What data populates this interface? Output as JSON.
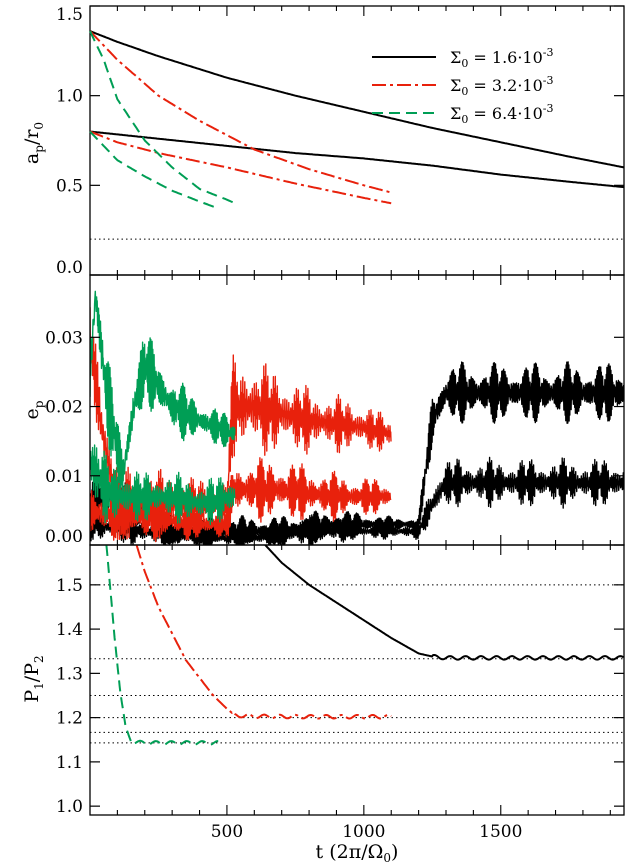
{
  "chart_data": [
    {
      "type": "line",
      "ylabel": "a_p/r_0",
      "xlim": [
        0,
        1950
      ],
      "ylim": [
        0.0,
        1.5
      ],
      "yticks": [
        "0.0",
        "0.5",
        "1.0",
        "1.5"
      ],
      "legend_position": "top-right",
      "series": [
        {
          "name": "Σ0 = 1.6·10-3",
          "color": "#000000",
          "style": "solid",
          "x": [
            0,
            100,
            250,
            500,
            750,
            1000,
            1250,
            1500,
            1750,
            1950
          ],
          "y": [
            1.36,
            1.3,
            1.22,
            1.1,
            1.0,
            0.91,
            0.82,
            0.74,
            0.66,
            0.6
          ]
        },
        {
          "name": "",
          "color": "#000000",
          "style": "solid",
          "x": [
            0,
            250,
            500,
            750,
            1000,
            1250,
            1500,
            1750,
            1950
          ],
          "y": [
            0.8,
            0.76,
            0.72,
            0.68,
            0.65,
            0.61,
            0.56,
            0.52,
            0.49
          ]
        },
        {
          "name": "Σ0 = 3.2·10-3",
          "color": "#e8210c",
          "style": "dashdot",
          "x": [
            0,
            100,
            250,
            400,
            600,
            800,
            1000,
            1100
          ],
          "y": [
            1.36,
            1.2,
            1.0,
            0.86,
            0.7,
            0.59,
            0.5,
            0.46
          ]
        },
        {
          "name": "",
          "color": "#e8210c",
          "style": "dashdot",
          "x": [
            0,
            100,
            250,
            500,
            750,
            1000,
            1100
          ],
          "y": [
            0.8,
            0.74,
            0.68,
            0.6,
            0.51,
            0.43,
            0.4
          ]
        },
        {
          "name": "Σ0 = 6.4·10-3",
          "color": "#009e55",
          "style": "dashed",
          "x": [
            0,
            50,
            100,
            200,
            300,
            400,
            500,
            530
          ],
          "y": [
            1.36,
            1.2,
            0.98,
            0.75,
            0.6,
            0.48,
            0.42,
            0.4
          ]
        },
        {
          "name": "",
          "color": "#009e55",
          "style": "dashed",
          "x": [
            0,
            50,
            100,
            200,
            300,
            400,
            470
          ],
          "y": [
            0.8,
            0.72,
            0.64,
            0.55,
            0.47,
            0.41,
            0.37
          ]
        }
      ],
      "reference_lines": [
        0.2
      ]
    },
    {
      "type": "line",
      "ylabel": "e_p",
      "xlim": [
        0,
        1950
      ],
      "ylim": [
        0.0,
        0.039
      ],
      "yticks": [
        "0.00",
        "0.01",
        "0.02",
        "0.03"
      ],
      "series": [
        {
          "color": "#000000",
          "x": [
            0,
            100,
            300,
            500,
            700,
            900,
            1100,
            1200,
            1250,
            1300,
            1500,
            1700,
            1950
          ],
          "y_center": [
            0.006,
            0.008,
            0.002,
            0.002,
            0.002,
            0.003,
            0.003,
            0.003,
            0.018,
            0.022,
            0.022,
            0.022,
            0.022
          ],
          "y_amp": [
            0.004,
            0.003,
            0.002,
            0.002,
            0.002,
            0.002,
            0.001,
            0.001,
            0.004,
            0.004,
            0.004,
            0.004,
            0.004
          ]
        },
        {
          "color": "#000000",
          "x": [
            0,
            200,
            400,
            600,
            800,
            1000,
            1200,
            1250,
            1300,
            1500,
            1700,
            1950
          ],
          "y_center": [
            0.003,
            0.002,
            0.001,
            0.001,
            0.002,
            0.002,
            0.002,
            0.006,
            0.009,
            0.009,
            0.009,
            0.009
          ],
          "y_amp": [
            0.002,
            0.002,
            0.001,
            0.001,
            0.002,
            0.001,
            0.001,
            0.003,
            0.003,
            0.003,
            0.003,
            0.003
          ]
        },
        {
          "color": "#e8210c",
          "x": [
            0,
            50,
            100,
            200,
            300,
            400,
            500,
            520,
            600,
            800,
            1000,
            1100
          ],
          "y_center": [
            0.03,
            0.015,
            0.006,
            0.006,
            0.006,
            0.006,
            0.006,
            0.02,
            0.02,
            0.018,
            0.017,
            0.016
          ],
          "y_amp": [
            0.006,
            0.006,
            0.005,
            0.004,
            0.004,
            0.003,
            0.003,
            0.006,
            0.006,
            0.004,
            0.003,
            0.002
          ]
        },
        {
          "color": "#e8210c",
          "x": [
            0,
            100,
            200,
            400,
            500,
            520,
            700,
            900,
            1100
          ],
          "y_center": [
            0.005,
            0.004,
            0.004,
            0.003,
            0.003,
            0.008,
            0.008,
            0.007,
            0.007
          ],
          "y_amp": [
            0.004,
            0.003,
            0.003,
            0.002,
            0.002,
            0.004,
            0.004,
            0.003,
            0.002
          ]
        },
        {
          "color": "#009e55",
          "x": [
            0,
            20,
            60,
            120,
            160,
            200,
            300,
            400,
            530
          ],
          "y_center": [
            0.025,
            0.036,
            0.022,
            0.01,
            0.02,
            0.026,
            0.02,
            0.018,
            0.016
          ],
          "y_amp": [
            0.008,
            0.004,
            0.006,
            0.004,
            0.005,
            0.005,
            0.004,
            0.003,
            0.002
          ]
        },
        {
          "color": "#009e55",
          "x": [
            0,
            60,
            120,
            200,
            300,
            400,
            530
          ],
          "y_center": [
            0.012,
            0.008,
            0.007,
            0.007,
            0.007,
            0.006,
            0.007
          ],
          "y_amp": [
            0.006,
            0.004,
            0.004,
            0.003,
            0.003,
            0.003,
            0.003
          ]
        }
      ]
    },
    {
      "type": "line",
      "ylabel": "P_1/P_2",
      "xlabel": "t (2π/Ω0)",
      "xlim": [
        0,
        1950
      ],
      "ylim": [
        0.98,
        1.59
      ],
      "yticks": [
        "1.0",
        "1.1",
        "1.2",
        "1.3",
        "1.4",
        "1.5"
      ],
      "xticks": [
        "500",
        "1000",
        "1500"
      ],
      "reference_lines": [
        1.5,
        1.333,
        1.25,
        1.2,
        1.1667,
        1.1429
      ],
      "series": [
        {
          "color": "#000000",
          "style": "solid",
          "x": [
            640,
            700,
            800,
            900,
            1000,
            1100,
            1200,
            1250,
            1300,
            1500,
            1700,
            1950
          ],
          "y": [
            1.59,
            1.55,
            1.5,
            1.46,
            1.42,
            1.38,
            1.345,
            1.338,
            1.335,
            1.335,
            1.335,
            1.335
          ],
          "wobble_from": 1250
        },
        {
          "color": "#e8210c",
          "style": "dashdot",
          "x": [
            170,
            200,
            250,
            300,
            350,
            400,
            450,
            500,
            530,
            600,
            800,
            1000,
            1100
          ],
          "y": [
            1.59,
            1.53,
            1.45,
            1.39,
            1.33,
            1.29,
            1.25,
            1.22,
            1.205,
            1.203,
            1.202,
            1.202,
            1.202
          ],
          "wobble_from": 520
        },
        {
          "color": "#009e55",
          "style": "dashed",
          "x": [
            60,
            70,
            90,
            110,
            130,
            150,
            200,
            300,
            400,
            470
          ],
          "y": [
            1.59,
            1.52,
            1.38,
            1.26,
            1.18,
            1.145,
            1.143,
            1.143,
            1.143,
            1.143
          ],
          "wobble_from": 150
        }
      ]
    }
  ]
}
